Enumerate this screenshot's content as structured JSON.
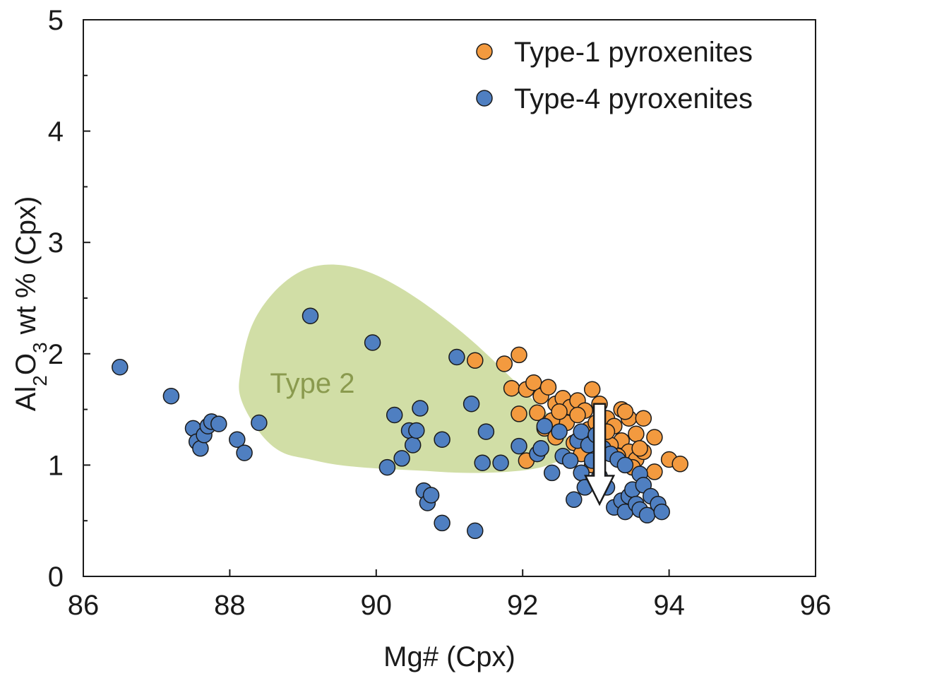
{
  "chart_data": {
    "type": "scatter",
    "xlabel": "Mg# (Cpx)",
    "ylabel": {
      "prefix": "Al",
      "sub1": "2",
      "mid": "O",
      "sub2": "3",
      "suffix": " wt % (Cpx)"
    },
    "xlim": [
      86,
      96
    ],
    "ylim": [
      0,
      5
    ],
    "x_ticks": [
      "86",
      "88",
      "90",
      "92",
      "94",
      "96"
    ],
    "y_ticks": [
      "0",
      "1",
      "2",
      "3",
      "4",
      "5"
    ],
    "legend_position": "top-right",
    "field": {
      "label": "Type 2",
      "color": "#d1deA6",
      "label_color": "#8a9a4e",
      "outline": [
        [
          88.15,
          1.85
        ],
        [
          88.3,
          2.25
        ],
        [
          88.6,
          2.55
        ],
        [
          89.0,
          2.75
        ],
        [
          89.45,
          2.8
        ],
        [
          89.95,
          2.72
        ],
        [
          90.55,
          2.5
        ],
        [
          91.25,
          2.15
        ],
        [
          91.85,
          1.78
        ],
        [
          92.15,
          1.58
        ],
        [
          92.5,
          1.35
        ],
        [
          92.65,
          1.12
        ],
        [
          92.3,
          0.99
        ],
        [
          91.8,
          0.94
        ],
        [
          91.2,
          0.93
        ],
        [
          90.6,
          0.95
        ],
        [
          90.0,
          0.97
        ],
        [
          89.5,
          1.0
        ],
        [
          89.1,
          1.05
        ],
        [
          88.7,
          1.12
        ],
        [
          88.4,
          1.3
        ],
        [
          88.15,
          1.6
        ]
      ]
    },
    "arrow": {
      "x": 93.05,
      "y_from": 1.55,
      "y_to": 0.65,
      "color": "#ffffff"
    },
    "series": [
      {
        "name": "Type-1 pyroxenites",
        "color": "#f39a3f",
        "points": [
          [
            91.35,
            1.94
          ],
          [
            91.75,
            1.91
          ],
          [
            91.95,
            1.99
          ],
          [
            91.85,
            1.69
          ],
          [
            92.05,
            1.68
          ],
          [
            92.15,
            1.74
          ],
          [
            92.25,
            1.62
          ],
          [
            92.35,
            1.7
          ],
          [
            92.45,
            1.55
          ],
          [
            92.55,
            1.6
          ],
          [
            92.65,
            1.52
          ],
          [
            92.75,
            1.58
          ],
          [
            92.85,
            1.49
          ],
          [
            92.95,
            1.68
          ],
          [
            93.05,
            1.55
          ],
          [
            93.15,
            1.42
          ],
          [
            93.25,
            1.35
          ],
          [
            93.35,
            1.5
          ],
          [
            93.45,
            1.42
          ],
          [
            93.55,
            1.28
          ],
          [
            93.65,
            1.42
          ],
          [
            93.35,
            1.22
          ],
          [
            93.45,
            1.12
          ],
          [
            93.55,
            1.05
          ],
          [
            93.65,
            1.12
          ],
          [
            93.8,
            1.25
          ],
          [
            93.8,
            0.94
          ],
          [
            94.0,
            1.05
          ],
          [
            94.15,
            1.01
          ],
          [
            92.05,
            1.04
          ],
          [
            91.95,
            1.46
          ],
          [
            92.3,
            1.33
          ],
          [
            92.45,
            1.25
          ],
          [
            92.6,
            1.38
          ],
          [
            92.7,
            1.2
          ],
          [
            92.75,
            1.45
          ],
          [
            92.9,
            1.32
          ],
          [
            93.0,
            1.38
          ],
          [
            93.1,
            1.25
          ],
          [
            93.2,
            1.18
          ],
          [
            93.3,
            1.08
          ],
          [
            93.4,
            1.48
          ],
          [
            93.5,
            0.98
          ],
          [
            93.6,
            1.15
          ],
          [
            92.2,
            1.47
          ],
          [
            92.4,
            1.4
          ],
          [
            92.5,
            1.48
          ],
          [
            92.8,
            1.1
          ],
          [
            92.95,
            1.0
          ],
          [
            93.15,
            1.3
          ]
        ]
      },
      {
        "name": "Type-4 pyroxenites",
        "color": "#4f7fc1",
        "points": [
          [
            86.5,
            1.88
          ],
          [
            87.2,
            1.62
          ],
          [
            87.5,
            1.33
          ],
          [
            87.55,
            1.21
          ],
          [
            87.6,
            1.15
          ],
          [
            87.65,
            1.27
          ],
          [
            87.7,
            1.35
          ],
          [
            87.75,
            1.39
          ],
          [
            87.85,
            1.37
          ],
          [
            88.1,
            1.23
          ],
          [
            88.2,
            1.11
          ],
          [
            88.4,
            1.38
          ],
          [
            89.1,
            2.34
          ],
          [
            89.95,
            2.1
          ],
          [
            90.15,
            0.98
          ],
          [
            90.25,
            1.45
          ],
          [
            90.35,
            1.06
          ],
          [
            90.45,
            1.31
          ],
          [
            90.5,
            1.18
          ],
          [
            90.55,
            1.31
          ],
          [
            90.6,
            1.51
          ],
          [
            90.65,
            0.77
          ],
          [
            90.7,
            0.66
          ],
          [
            90.75,
            0.73
          ],
          [
            90.9,
            1.23
          ],
          [
            90.9,
            0.48
          ],
          [
            91.1,
            1.97
          ],
          [
            91.3,
            1.55
          ],
          [
            91.35,
            0.41
          ],
          [
            91.45,
            1.02
          ],
          [
            91.5,
            1.3
          ],
          [
            91.7,
            1.02
          ],
          [
            91.95,
            1.17
          ],
          [
            92.2,
            1.1
          ],
          [
            92.25,
            1.15
          ],
          [
            92.3,
            1.35
          ],
          [
            92.4,
            0.93
          ],
          [
            92.5,
            1.3
          ],
          [
            92.55,
            1.08
          ],
          [
            92.65,
            1.04
          ],
          [
            92.7,
            0.69
          ],
          [
            92.75,
            1.22
          ],
          [
            92.8,
            1.3
          ],
          [
            92.8,
            0.93
          ],
          [
            92.85,
            0.8
          ],
          [
            92.9,
            1.18
          ],
          [
            92.95,
            1.04
          ],
          [
            93.0,
            1.27
          ],
          [
            93.05,
            0.9
          ],
          [
            93.1,
            1.15
          ],
          [
            93.15,
            0.8
          ],
          [
            93.2,
            1.1
          ],
          [
            93.25,
            0.62
          ],
          [
            93.3,
            1.05
          ],
          [
            93.35,
            0.68
          ],
          [
            93.4,
            0.58
          ],
          [
            93.4,
            1.0
          ],
          [
            93.45,
            0.72
          ],
          [
            93.5,
            0.78
          ],
          [
            93.55,
            0.65
          ],
          [
            93.6,
            0.92
          ],
          [
            93.6,
            0.6
          ],
          [
            93.65,
            0.82
          ],
          [
            93.7,
            0.55
          ],
          [
            93.75,
            0.72
          ],
          [
            93.85,
            0.65
          ],
          [
            93.9,
            0.58
          ]
        ]
      }
    ]
  }
}
